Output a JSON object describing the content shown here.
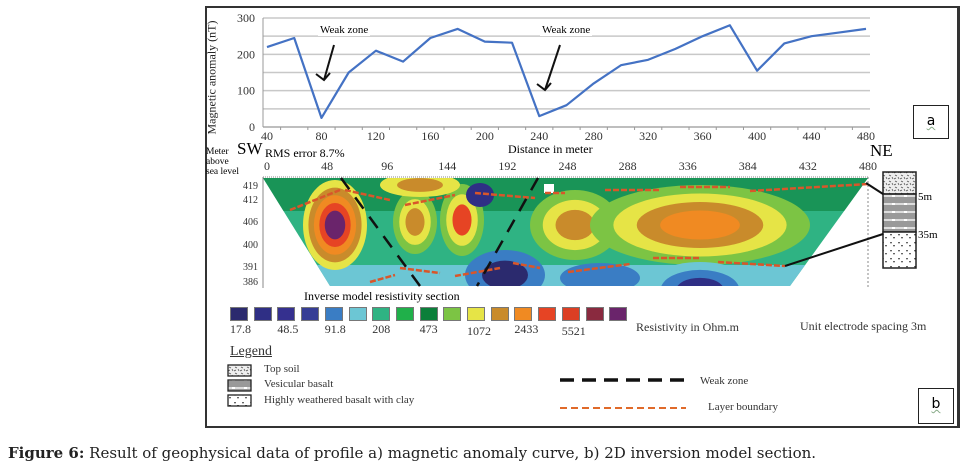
{
  "figure": {
    "caption_label": "Figure 6:",
    "caption_text": " Result of geophysical data of profile a) magnetic anomaly curve, b) 2D inversion model section."
  },
  "chart_data": [
    {
      "type": "line",
      "panel": "a",
      "title": "",
      "xlabel": "Distance in meter",
      "ylabel": "Magnetic anomaly (nT)",
      "ylim": [
        0,
        300
      ],
      "xlim": [
        40,
        480
      ],
      "grid": true,
      "y_ticks": [
        0,
        100,
        200,
        300
      ],
      "x_ticks": [
        40,
        80,
        120,
        160,
        200,
        240,
        280,
        320,
        360,
        400,
        440,
        480
      ],
      "x": [
        40,
        60,
        80,
        100,
        120,
        140,
        160,
        180,
        200,
        220,
        240,
        260,
        280,
        300,
        320,
        340,
        360,
        380,
        400,
        420,
        440,
        460,
        480
      ],
      "series": [
        {
          "name": "Magnetic anomaly",
          "color": "#4472c4",
          "values": [
            220,
            245,
            25,
            150,
            210,
            180,
            245,
            270,
            235,
            232,
            30,
            60,
            120,
            170,
            185,
            215,
            250,
            280,
            155,
            230,
            250,
            260,
            270
          ]
        }
      ],
      "annotations": [
        {
          "text": "Weak zone",
          "x": 80,
          "y_text": 270,
          "arrow_to_y": 120
        },
        {
          "text": "Weak zone",
          "x": 250,
          "y_text": 270,
          "arrow_to_y": 90
        }
      ],
      "direction_left": "SW",
      "direction_right": "NE"
    },
    {
      "type": "heatmap",
      "panel": "b",
      "title": "Inverse model resistivity section",
      "subtitle": "RMS error 8.7%",
      "xlabel": "",
      "ylabel": "Meter above sea level",
      "x_ticks": [
        0,
        48,
        96,
        144,
        192,
        248,
        288,
        336,
        384,
        432,
        480
      ],
      "y_ticks": [
        419,
        412,
        406,
        400,
        391,
        386
      ],
      "colorbar": {
        "label": "Resistivity in Ohm.m",
        "tick_labels": [
          "17.8",
          "48.5",
          "91.8",
          "208",
          "473",
          "1072",
          "2433",
          "5521"
        ],
        "colors": [
          "#2b2a6e",
          "#2f2f85",
          "#35308f",
          "#363d95",
          "#3a7dc4",
          "#6cc6d4",
          "#2fb383",
          "#20b04a",
          "#0b7f3a",
          "#7cc444",
          "#e6e446",
          "#c98b2b",
          "#f08a22",
          "#e64424",
          "#dc3f24",
          "#8a2a3f",
          "#6a246b"
        ]
      },
      "note": "Unit electrode spacing 3m",
      "stratigraphy": [
        {
          "label": "Top soil",
          "depth_label": "5m"
        },
        {
          "label": "Vesicular basalt",
          "depth_label": "35m"
        },
        {
          "label": "Highly weathered basalt with clay",
          "depth_label": ""
        }
      ]
    }
  ],
  "panel_a": {
    "ylabel": "Magnetic anomaly (nT)",
    "xlabel": "Distance in meter",
    "box_label": "a",
    "weak_zone_1": "Weak zone",
    "weak_zone_2": "Weak zone",
    "sw": "SW",
    "ne": "NE"
  },
  "panel_b": {
    "rms": "RMS error 8.7%",
    "ylabel_1": "Meter",
    "ylabel_2": "above",
    "ylabel_3": "sea level",
    "section_title": "Inverse model resistivity section",
    "colorbar_label": "Resistivity in Ohm.m",
    "electrode_note": "Unit electrode spacing 3m",
    "box_label": "b",
    "strat_5m": "5m",
    "strat_35m": "35m"
  },
  "legend": {
    "title": "Legend",
    "items": [
      {
        "label": "Top soil",
        "pattern": "top-soil"
      },
      {
        "label": "Vesicular basalt",
        "pattern": "vesicular-basalt"
      },
      {
        "label": "Highly weathered basalt with clay",
        "pattern": "weathered-basalt"
      }
    ],
    "lines": [
      {
        "label": "Weak zone",
        "color": "#111111",
        "style": "dashed"
      },
      {
        "label": "Layer boundary",
        "color": "#e06a2a",
        "style": "dashed"
      }
    ]
  }
}
